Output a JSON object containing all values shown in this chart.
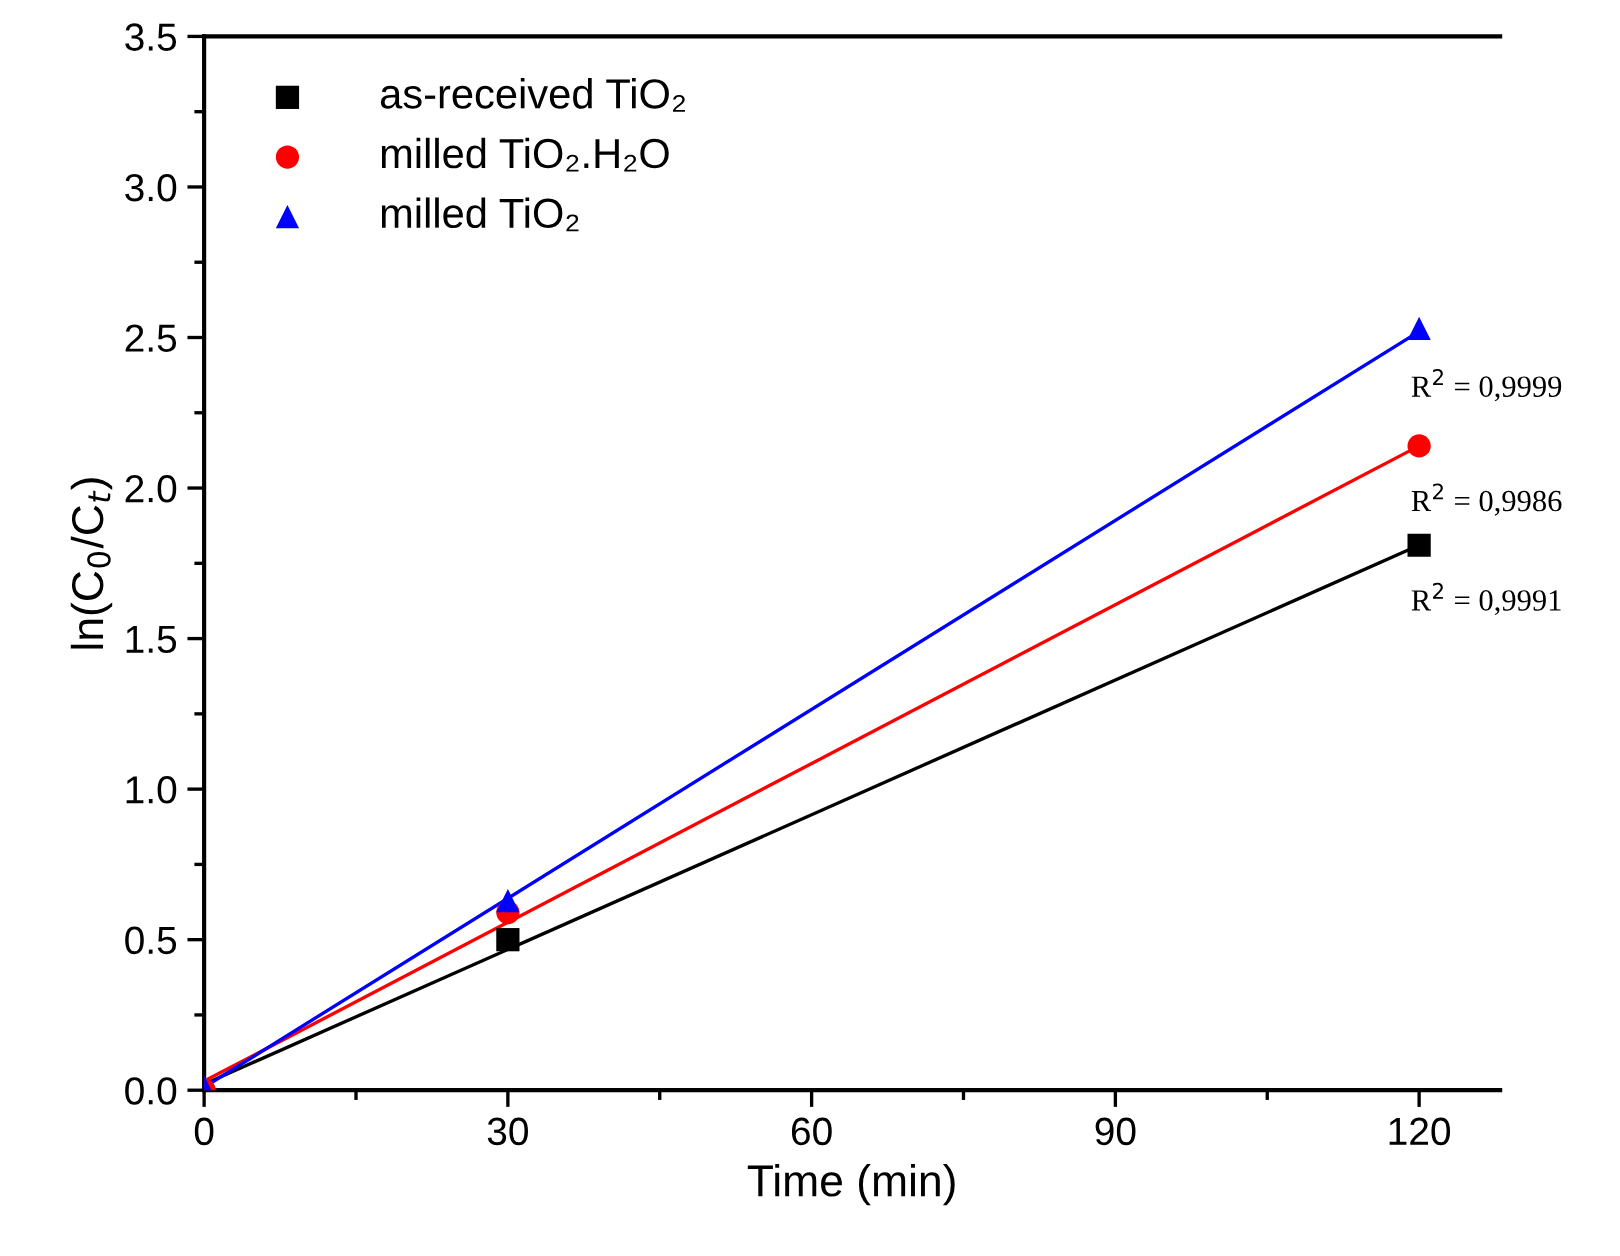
{
  "chart_data": {
    "type": "scatter",
    "xlabel": "Time (min)",
    "ylabel": "ln(C$_{0}$/C$_{t}$)",
    "xlim": [
      0,
      128
    ],
    "ylim": [
      0,
      3.5
    ],
    "xticks": [
      0,
      30,
      60,
      90,
      120
    ],
    "yticks": [
      {
        "value": 0,
        "label": "0.0"
      },
      {
        "value": 0.5,
        "label": "0.5"
      },
      {
        "value": 1,
        "label": "1.0"
      },
      {
        "value": 1.5,
        "label": "1.5"
      },
      {
        "value": 2,
        "label": "2.0"
      },
      {
        "value": 2.5,
        "label": "2.5"
      },
      {
        "value": 3,
        "label": "3.0"
      },
      {
        "value": 3.5,
        "label": "3.5"
      }
    ],
    "grid": false,
    "legend": "top left",
    "series": [
      {
        "name": "as-received TiO₂",
        "color": "#000000",
        "marker": "square",
        "x": [
          30,
          120
        ],
        "values": [
          0.5,
          1.81
        ]
      },
      {
        "name": "milled TiO₂.H₂O",
        "color": "#ff0000",
        "marker": "circle",
        "x": [
          0,
          30,
          120
        ],
        "values": [
          0,
          0.59,
          2.14
        ]
      },
      {
        "name": "milled TiO₂",
        "color": "#0000ff",
        "marker": "triangle",
        "x": [
          0,
          30,
          120
        ],
        "values": [
          0.01,
          0.63,
          2.53
        ]
      },
      {
        "type": "line",
        "color": "#000000",
        "x": [
          0,
          120
        ],
        "values": [
          0.02,
          1.81
        ]
      },
      {
        "type": "line",
        "color": "#ff0000",
        "x": [
          0,
          120
        ],
        "values": [
          0.03,
          2.14
        ]
      },
      {
        "type": "line",
        "color": "#0000ff",
        "x": [
          0,
          120
        ],
        "values": [
          0.01,
          2.52
        ]
      }
    ],
    "annotations": [
      "R$^{2}$ = 0,9999",
      "R$^{2}$ = 0,9986",
      "R$^{2}$ = 0,9991"
    ]
  }
}
